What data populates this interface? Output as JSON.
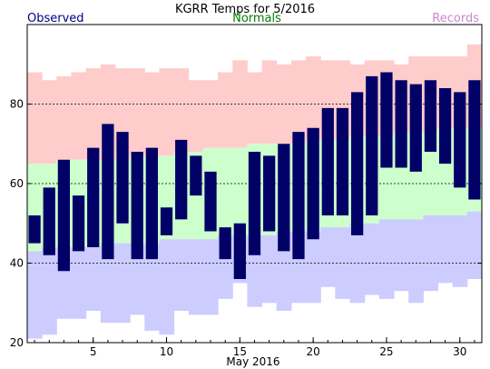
{
  "chart_data": {
    "type": "bar",
    "title": "KGRR Temps for 5/2016",
    "xlabel": "May 2016",
    "ylabel": "",
    "ylim": [
      20,
      100
    ],
    "xlim": [
      0.5,
      31.5
    ],
    "yticks": [
      20,
      40,
      60,
      80
    ],
    "xticks": [
      5,
      10,
      15,
      20,
      25,
      30
    ],
    "grid": "dashed horizontal lines at 40, 60, 80",
    "legend": "top",
    "colors": {
      "observed": "#000066",
      "normals": "#ccffcc",
      "records": "#ffcccc",
      "record_low_band": "#ccccff",
      "observed_label": "#000080",
      "normals_label": "#008000",
      "records_label": "#cc88cc"
    },
    "days": [
      1,
      2,
      3,
      4,
      5,
      6,
      7,
      8,
      9,
      10,
      11,
      12,
      13,
      14,
      15,
      16,
      17,
      18,
      19,
      20,
      21,
      22,
      23,
      24,
      25,
      26,
      27,
      28,
      29,
      30,
      31
    ],
    "series": [
      {
        "name": "Observed",
        "high": [
          52,
          59,
          66,
          57,
          69,
          75,
          73,
          68,
          69,
          54,
          71,
          67,
          63,
          49,
          50,
          68,
          67,
          70,
          73,
          74,
          79,
          79,
          83,
          87,
          88,
          86,
          85,
          86,
          84,
          83,
          86
        ],
        "low": [
          45,
          42,
          38,
          43,
          44,
          41,
          50,
          41,
          41,
          47,
          51,
          57,
          48,
          41,
          36,
          42,
          48,
          43,
          41,
          46,
          52,
          52,
          47,
          52,
          64,
          64,
          63,
          68,
          65,
          59,
          56
        ]
      },
      {
        "name": "Normals",
        "high": [
          65,
          65,
          66,
          66,
          66,
          66,
          66,
          67,
          67,
          67,
          68,
          68,
          69,
          69,
          69,
          70,
          70,
          70,
          70,
          71,
          71,
          71,
          72,
          72,
          72,
          73,
          73,
          73,
          74,
          74,
          74
        ],
        "low": [
          43,
          44,
          44,
          44,
          44,
          45,
          45,
          45,
          45,
          46,
          46,
          46,
          46,
          47,
          47,
          47,
          47,
          48,
          48,
          48,
          49,
          49,
          50,
          50,
          51,
          51,
          51,
          52,
          52,
          52,
          53
        ]
      },
      {
        "name": "Records",
        "high": [
          88,
          86,
          87,
          88,
          89,
          90,
          89,
          89,
          88,
          89,
          89,
          86,
          86,
          88,
          91,
          88,
          91,
          90,
          91,
          92,
          91,
          91,
          90,
          91,
          91,
          90,
          92,
          92,
          92,
          92,
          95
        ],
        "low": [
          21,
          22,
          26,
          26,
          28,
          25,
          25,
          27,
          23,
          22,
          28,
          27,
          27,
          31,
          35,
          29,
          30,
          28,
          30,
          30,
          34,
          31,
          30,
          32,
          31,
          33,
          30,
          33,
          35,
          34,
          36
        ]
      }
    ]
  }
}
